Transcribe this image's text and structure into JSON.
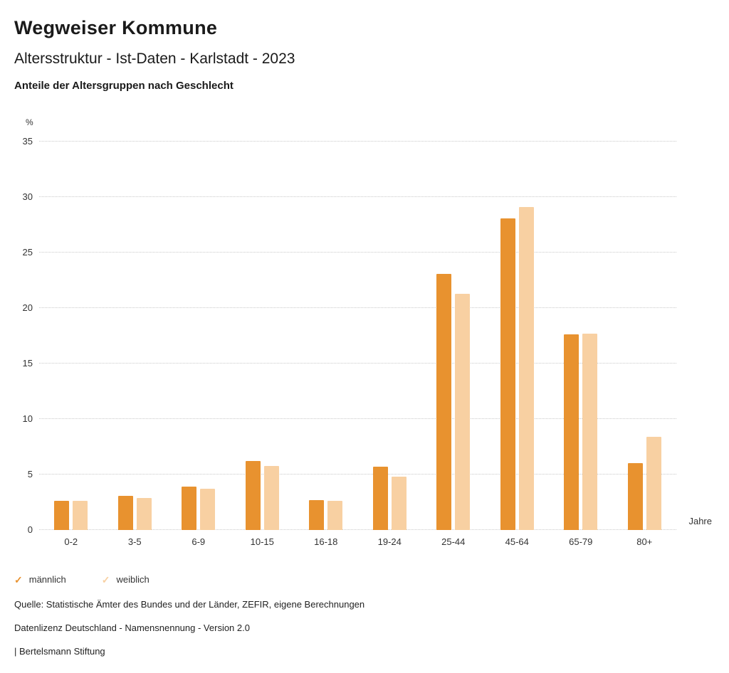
{
  "header": {
    "title": "Wegweiser Kommune",
    "subtitle": "Altersstruktur - Ist-Daten - Karlstadt - 2023",
    "heading": "Anteile der Altersgruppen nach Geschlecht"
  },
  "chart_data": {
    "type": "bar",
    "title": "Anteile der Altersgruppen nach Geschlecht",
    "categories": [
      "0-2",
      "3-5",
      "6-9",
      "10-15",
      "16-18",
      "19-24",
      "25-44",
      "45-64",
      "65-79",
      "80+"
    ],
    "series": [
      {
        "name": "männlich",
        "color": "#E8922F",
        "values": [
          2.6,
          3.1,
          3.9,
          6.2,
          2.7,
          5.7,
          23.1,
          28.1,
          17.6,
          6.0
        ]
      },
      {
        "name": "weiblich",
        "color": "#F8D0A2",
        "values": [
          2.6,
          2.9,
          3.7,
          5.8,
          2.6,
          4.8,
          21.3,
          29.1,
          17.7,
          8.4
        ]
      }
    ],
    "xlabel": "Jahre",
    "ylabel": "%",
    "ylim": [
      0,
      35
    ],
    "yticks": [
      0,
      5,
      10,
      15,
      20,
      25,
      30,
      35
    ],
    "grid": "dotted horizontal",
    "legend_position": "bottom"
  },
  "legend": {
    "check_icon": "✓"
  },
  "footer": {
    "source": "Quelle: Statistische Ämter des Bundes und der Länder, ZEFIR, eigene Berechnungen",
    "license": "Datenlizenz Deutschland - Namensnennung - Version 2.0",
    "attribution": "| Bertelsmann Stiftung"
  }
}
